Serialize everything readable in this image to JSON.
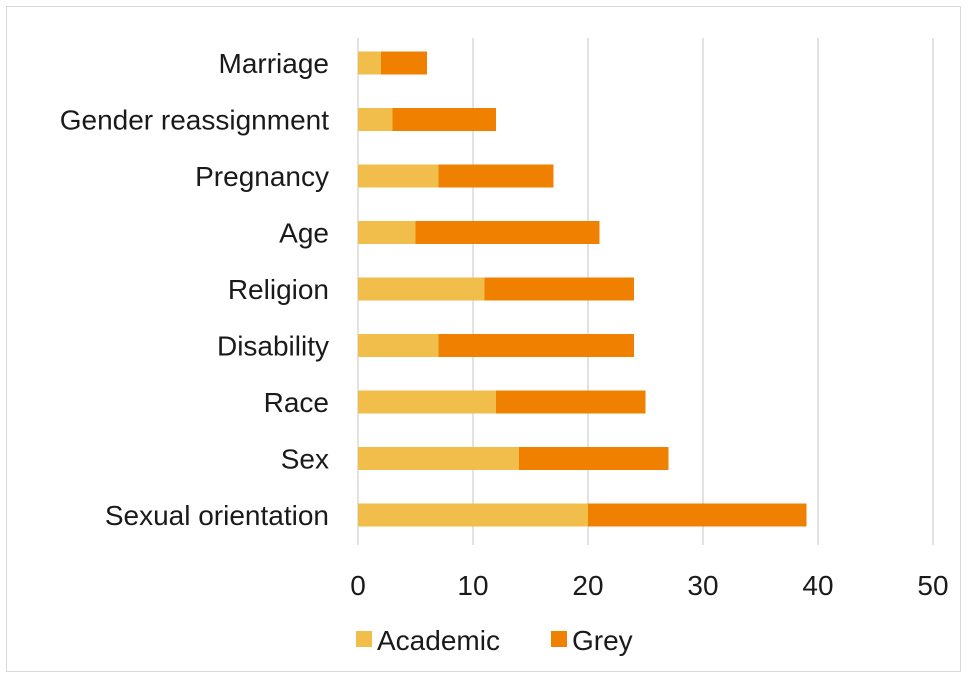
{
  "chart_data": {
    "type": "bar",
    "orientation": "horizontal",
    "stacked": true,
    "categories": [
      "Marriage",
      "Gender reassignment",
      "Pregnancy",
      "Age",
      "Religion",
      "Disability",
      "Race",
      "Sex",
      "Sexual orientation"
    ],
    "series": [
      {
        "name": "Academic",
        "color": "#F2BE4B",
        "values": [
          2,
          3,
          7,
          5,
          11,
          7,
          12,
          14,
          20
        ]
      },
      {
        "name": "Grey",
        "color": "#EF8000",
        "values": [
          4,
          9,
          10,
          16,
          13,
          17,
          13,
          13,
          19
        ]
      }
    ],
    "xlim": [
      0,
      50
    ],
    "xticks": [
      "0",
      "10",
      "20",
      "30",
      "40",
      "50"
    ],
    "grid": "vertical",
    "legend": "bottom"
  }
}
